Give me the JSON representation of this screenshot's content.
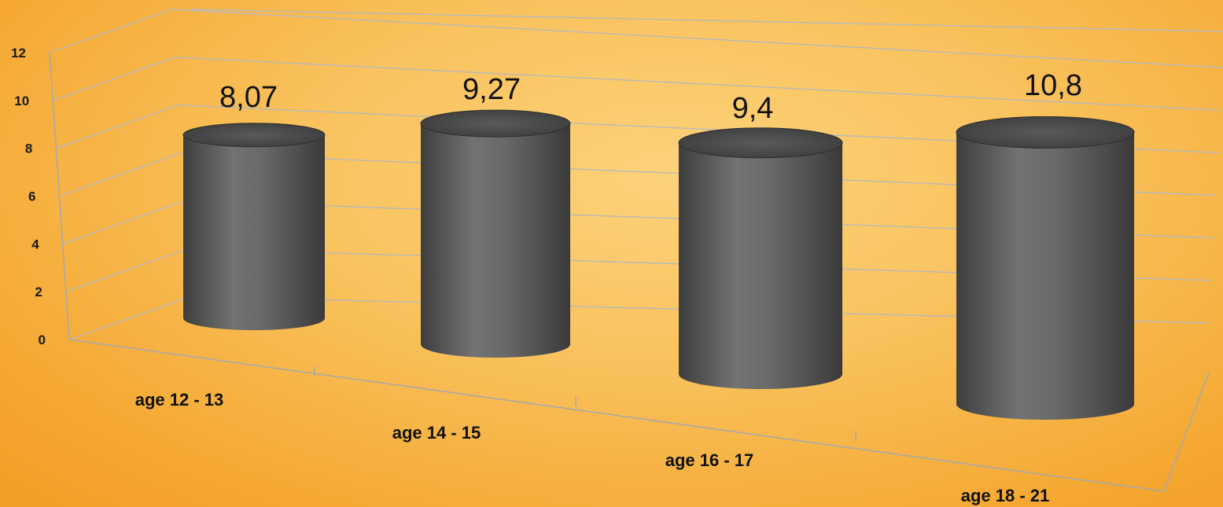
{
  "chart_data": {
    "type": "bar",
    "style": "3d-cylinder",
    "categories": [
      "age 12 - 13",
      "age 14 - 15",
      "age 16 - 17",
      "age 18 - 21"
    ],
    "values": [
      8.07,
      9.27,
      9.4,
      10.8
    ],
    "data_labels": [
      "8,07",
      "9,27",
      "9,4",
      "10,8"
    ],
    "yticks": [
      "0",
      "2",
      "4",
      "6",
      "8",
      "10",
      "12"
    ],
    "ylim": [
      0,
      12
    ],
    "grid": true,
    "legend": "none",
    "colors": {
      "bar": "#5e5e5e",
      "background": "#f9c25d",
      "grid": "#b9b9b9"
    }
  }
}
